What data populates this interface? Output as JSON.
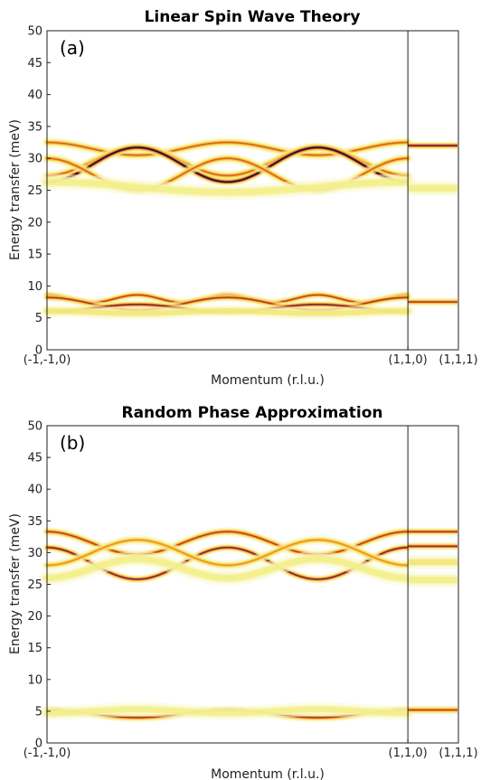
{
  "chart_data": [
    {
      "type": "heatmap",
      "panel_label": "(a)",
      "title": "Linear Spin Wave Theory",
      "xlabel": "Momentum (r.l.u.)",
      "ylabel": "Energy transfer (meV)",
      "ylim": [
        0,
        50
      ],
      "yticks": [
        "0",
        "5",
        "10",
        "15",
        "20",
        "25",
        "30",
        "35",
        "40",
        "45",
        "50"
      ],
      "xticks": [
        "(-1,-1,0)",
        "(1,1,0)",
        "(1,1,1)"
      ],
      "xlim": [
        0,
        1.14
      ],
      "xtick_values": [
        0,
        1,
        1.14
      ],
      "vline": 1,
      "colormap": [
        "#ffffff",
        "#f2f08c",
        "#f7c531",
        "#ee7a1e",
        "#b8312a",
        "#5c1a5e",
        "#0a0a14"
      ],
      "modes": [
        {
          "center": 31.5,
          "amplitude": 1.0,
          "period": 0.5,
          "phase": 0.0,
          "intensity": 0.45,
          "width": 0.55
        },
        {
          "center": 29.5,
          "amplitude": 2.2,
          "period": 0.5,
          "phase": 0.5,
          "intensity": 0.45,
          "width": 0.55
        },
        {
          "center": 29.0,
          "amplitude": 2.7,
          "period": 0.5,
          "phase": 0.5,
          "intensity": 0.95,
          "width": 0.45
        },
        {
          "center": 27.5,
          "amplitude": 2.5,
          "period": 0.5,
          "phase": 0.0,
          "intensity": 0.45,
          "width": 0.55
        },
        {
          "center": 25.5,
          "amplitude": 0.8,
          "period": 1.0,
          "phase": 0.0,
          "intensity": 0.2,
          "width": 0.9
        },
        {
          "center": 8.0,
          "amplitude": 0.6,
          "period": 0.25,
          "phase": 0.0,
          "intensity": 0.55,
          "width": 0.45
        },
        {
          "center": 7.2,
          "amplitude": 1.0,
          "period": 0.5,
          "phase": 0.0,
          "intensity": 0.6,
          "width": 0.45
        },
        {
          "center": 6.5,
          "amplitude": 0.6,
          "period": 0.5,
          "phase": 0.5,
          "intensity": 0.7,
          "width": 0.45
        },
        {
          "center": 5.9,
          "amplitude": 0.2,
          "period": 0.5,
          "phase": 0.0,
          "intensity": 0.25,
          "width": 0.7
        }
      ],
      "flat_modes": [
        {
          "energy": 32.0,
          "intensity": 0.75,
          "width": 0.45
        },
        {
          "energy": 25.3,
          "intensity": 0.2,
          "width": 0.9
        },
        {
          "energy": 7.5,
          "intensity": 0.6,
          "width": 0.45
        }
      ]
    },
    {
      "type": "heatmap",
      "panel_label": "(b)",
      "title": "Random Phase Approximation",
      "xlabel": "Momentum (r.l.u.)",
      "ylabel": "Energy transfer (meV)",
      "ylim": [
        0,
        50
      ],
      "yticks": [
        "0",
        "5",
        "10",
        "15",
        "20",
        "25",
        "30",
        "35",
        "40",
        "45",
        "50"
      ],
      "xticks": [
        "(-1,-1,0)",
        "(1,1,0)",
        "(1,1,1)"
      ],
      "xlim": [
        0,
        1.14
      ],
      "xtick_values": [
        0,
        1,
        1.14
      ],
      "vline": 1,
      "colormap": [
        "#ffffff",
        "#f2f08c",
        "#f7c531",
        "#ee7a1e",
        "#b8312a",
        "#5c1a5e",
        "#0a0a14"
      ],
      "modes": [
        {
          "center": 31.5,
          "amplitude": 1.8,
          "period": 0.5,
          "phase": 0.0,
          "intensity": 0.55,
          "width": 0.5
        },
        {
          "center": 28.3,
          "amplitude": 2.5,
          "period": 0.5,
          "phase": 0.0,
          "intensity": 0.7,
          "width": 0.45
        },
        {
          "center": 30.0,
          "amplitude": 2.0,
          "period": 0.5,
          "phase": 0.5,
          "intensity": 0.35,
          "width": 0.55
        },
        {
          "center": 27.5,
          "amplitude": 1.5,
          "period": 0.5,
          "phase": 0.5,
          "intensity": 0.2,
          "width": 0.9
        },
        {
          "center": 4.6,
          "amplitude": 0.6,
          "period": 0.5,
          "phase": 0.0,
          "intensity": 0.6,
          "width": 0.5
        },
        {
          "center": 5.0,
          "amplitude": 0.3,
          "period": 0.5,
          "phase": 0.5,
          "intensity": 0.2,
          "width": 0.8
        }
      ],
      "flat_modes": [
        {
          "energy": 33.3,
          "intensity": 0.6,
          "width": 0.45
        },
        {
          "energy": 31.0,
          "intensity": 0.65,
          "width": 0.45
        },
        {
          "energy": 28.5,
          "intensity": 0.25,
          "width": 0.8
        },
        {
          "energy": 25.7,
          "intensity": 0.2,
          "width": 0.9
        },
        {
          "energy": 5.2,
          "intensity": 0.55,
          "width": 0.5
        }
      ]
    }
  ]
}
